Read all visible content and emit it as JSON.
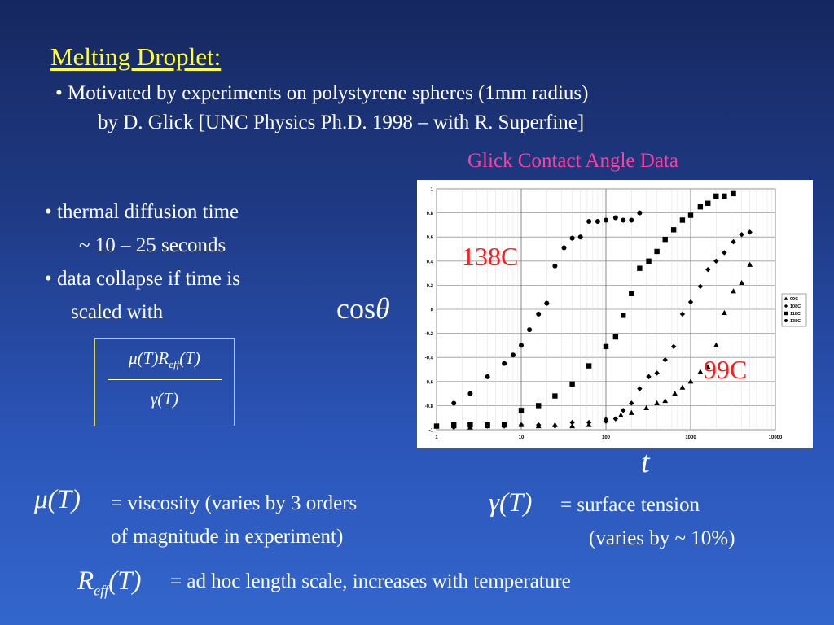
{
  "slide": {
    "title": "Melting Droplet:",
    "bullet1_line1": "• Motivated by experiments on polystyrene spheres (1mm radius)",
    "bullet1_line2": "by D. Glick [UNC Physics Ph.D. 1998 – with R. Superfine]",
    "chart_title": "Glick Contact Angle Data",
    "bullet2_line1": "• thermal diffusion time",
    "bullet2_line2": "~ 10 – 25 seconds",
    "bullet3_line1": "• data collapse if time is",
    "bullet3_line2": "scaled with",
    "fraction_numerator": "μ(T)R",
    "fraction_numerator_sub": "eff",
    "fraction_numerator_tail": "(T)",
    "fraction_denominator": "γ(T)",
    "y_symbol": "cos",
    "y_symbol_theta": "θ",
    "x_symbol": "t",
    "label_hot": "138C",
    "label_cold": "99C",
    "mu_symbol": "μ(T)",
    "mu_text_line1": "= viscosity (varies by 3 orders",
    "mu_text_line2": "of magnitude in experiment)",
    "gamma_symbol": "γ(T)",
    "gamma_text_line1": "= surface tension",
    "gamma_text_line2": "(varies by ~ 10%)",
    "reff_symbol": "R",
    "reff_sub": "eff",
    "reff_tail": "(T)",
    "reff_text": "= ad hoc length scale, increases with temperature"
  },
  "chart_data": {
    "type": "scatter",
    "x_scale": "log",
    "xlim": [
      1,
      10000
    ],
    "ylim": [
      -1,
      1
    ],
    "x_ticks": [
      "1",
      "10",
      "100",
      "1000",
      "10000"
    ],
    "y_ticks": [
      "1",
      "0.8",
      "0.6",
      "0.4",
      "0.2",
      "0",
      "-0.2",
      "-0.4",
      "-0.6",
      "-0.8",
      "-1"
    ],
    "grid": true,
    "legend_position": "right",
    "series": [
      {
        "name": "99C",
        "marker": "triangle",
        "x": [
          1.0,
          1.6,
          2.5,
          4.0,
          6.3,
          10,
          16,
          25,
          40,
          63,
          100,
          150,
          200,
          300,
          400,
          500,
          650,
          800,
          1000,
          1300,
          1600,
          2000,
          2500,
          3200,
          4000,
          5000
        ],
        "y": [
          -0.97,
          -0.97,
          -0.98,
          -0.97,
          -0.96,
          -0.96,
          -0.97,
          -0.96,
          -0.97,
          -0.96,
          -0.91,
          -0.88,
          -0.86,
          -0.82,
          -0.78,
          -0.76,
          -0.7,
          -0.65,
          -0.6,
          -0.52,
          -0.48,
          -0.3,
          -0.03,
          0.15,
          0.22,
          0.37
        ]
      },
      {
        "name": "108C",
        "marker": "diamond",
        "x": [
          1.0,
          1.6,
          2.5,
          4.0,
          6.3,
          10,
          16,
          25,
          40,
          63,
          100,
          130,
          160,
          200,
          250,
          320,
          400,
          500,
          630,
          800,
          1000,
          1300,
          1600,
          2000,
          2500,
          3200,
          4000,
          5000
        ],
        "y": [
          -0.97,
          -0.98,
          -0.97,
          -0.97,
          -0.97,
          -0.96,
          -0.96,
          -0.97,
          -0.94,
          -0.94,
          -0.93,
          -0.91,
          -0.84,
          -0.78,
          -0.66,
          -0.56,
          -0.53,
          -0.42,
          -0.31,
          -0.04,
          0.06,
          0.19,
          0.33,
          0.4,
          0.47,
          0.56,
          0.62,
          0.64
        ]
      },
      {
        "name": "118C",
        "marker": "square",
        "x": [
          1.0,
          1.6,
          2.5,
          4.0,
          6.3,
          10,
          16,
          25,
          40,
          63,
          100,
          130,
          160,
          200,
          250,
          320,
          400,
          500,
          630,
          800,
          1000,
          1300,
          1600,
          2000,
          2500,
          3200
        ],
        "y": [
          -0.97,
          -0.96,
          -0.96,
          -0.96,
          -0.96,
          -0.84,
          -0.8,
          -0.72,
          -0.62,
          -0.47,
          -0.31,
          -0.23,
          -0.05,
          0.13,
          0.34,
          0.4,
          0.48,
          0.58,
          0.66,
          0.74,
          0.78,
          0.85,
          0.88,
          0.94,
          0.94,
          0.96
        ]
      },
      {
        "name": "138C",
        "marker": "circle",
        "x": [
          1.0,
          1.6,
          2.5,
          4.0,
          6.3,
          8.0,
          10,
          12.5,
          16,
          20,
          25,
          32,
          40,
          50,
          63,
          80,
          100,
          130,
          160,
          200,
          250
        ],
        "y": [
          -0.97,
          -0.78,
          -0.7,
          -0.56,
          -0.45,
          -0.38,
          -0.3,
          -0.17,
          -0.04,
          0.05,
          0.36,
          0.51,
          0.59,
          0.6,
          0.73,
          0.73,
          0.74,
          0.76,
          0.74,
          0.74,
          0.8
        ]
      }
    ]
  }
}
